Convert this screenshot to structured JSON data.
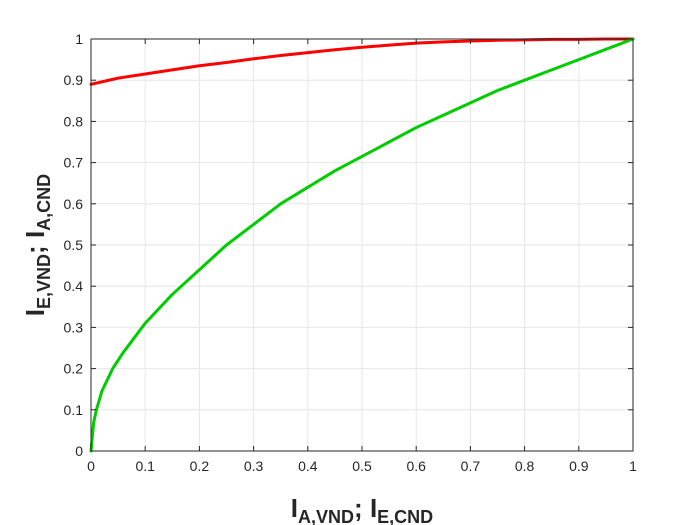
{
  "chart_data": {
    "type": "line",
    "xlabel": {
      "main": "I",
      "sub1": "A,VND",
      "sep": "; ",
      "main2": "I",
      "sub2": "E,CND"
    },
    "ylabel": {
      "main": "I",
      "sub1": "E,VND",
      "sep": "; ",
      "main2": "I",
      "sub2": "A,CND"
    },
    "xlim": [
      0,
      1
    ],
    "ylim": [
      0,
      1
    ],
    "xticks": [
      "0",
      "0.1",
      "0.2",
      "0.3",
      "0.4",
      "0.5",
      "0.6",
      "0.7",
      "0.8",
      "0.9",
      "1"
    ],
    "yticks": [
      "0",
      "0.1",
      "0.2",
      "0.3",
      "0.4",
      "0.5",
      "0.6",
      "0.7",
      "0.8",
      "0.9",
      "1"
    ],
    "grid": true,
    "series": [
      {
        "color": "#ff0000",
        "x": [
          0,
          0.05,
          0.1,
          0.15,
          0.2,
          0.25,
          0.3,
          0.35,
          0.4,
          0.45,
          0.5,
          0.55,
          0.6,
          0.65,
          0.7,
          0.75,
          0.8,
          0.85,
          0.9,
          0.95,
          1
        ],
        "y": [
          0.89,
          0.905,
          0.915,
          0.925,
          0.935,
          0.943,
          0.952,
          0.96,
          0.967,
          0.974,
          0.98,
          0.985,
          0.99,
          0.993,
          0.995,
          0.997,
          0.998,
          0.999,
          0.999,
          1.0,
          1.0
        ]
      },
      {
        "color": "#00cc00",
        "x": [
          0,
          0.005,
          0.01,
          0.02,
          0.04,
          0.06,
          0.08,
          0.1,
          0.15,
          0.2,
          0.25,
          0.3,
          0.35,
          0.4,
          0.45,
          0.5,
          0.55,
          0.6,
          0.65,
          0.7,
          0.75,
          0.8,
          0.85,
          0.9,
          0.95,
          1
        ],
        "y": [
          0,
          0.07,
          0.1,
          0.145,
          0.2,
          0.24,
          0.275,
          0.31,
          0.38,
          0.44,
          0.5,
          0.55,
          0.6,
          0.64,
          0.68,
          0.715,
          0.75,
          0.785,
          0.815,
          0.845,
          0.875,
          0.9,
          0.925,
          0.95,
          0.975,
          1.0
        ]
      }
    ]
  }
}
